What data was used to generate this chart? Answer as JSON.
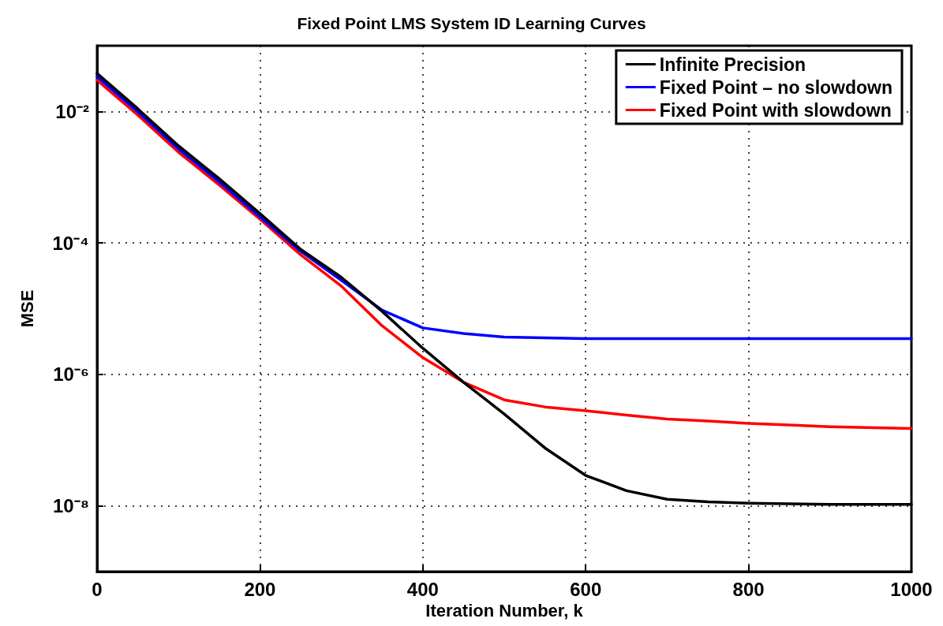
{
  "chart_data": {
    "type": "line",
    "title": "Fixed Point LMS System ID Learning Curves",
    "xlabel": "Iteration Number, k",
    "ylabel": "MSE",
    "x": [
      0,
      50,
      100,
      150,
      200,
      250,
      300,
      350,
      400,
      450,
      500,
      550,
      600,
      650,
      700,
      750,
      800,
      900,
      1000
    ],
    "series": [
      {
        "name": "Infinite Precision",
        "color": "#000000",
        "values": [
          0.038,
          0.011,
          0.003,
          0.00095,
          0.00028,
          8e-05,
          3e-05,
          9.1e-06,
          2.5e-06,
          7.6e-07,
          2.5e-07,
          7.6e-08,
          2.9e-08,
          1.7e-08,
          1.26e-08,
          1.15e-08,
          1.1e-08,
          1.05e-08,
          1.05e-08
        ]
      },
      {
        "name": "Fixed Point – no slowdown",
        "color": "#0000ff",
        "values": [
          0.034,
          0.0099,
          0.0027,
          0.00085,
          0.00025,
          7.5e-05,
          2.7e-05,
          9.5e-06,
          5.1e-06,
          4.2e-06,
          3.7e-06,
          3.6e-06,
          3.5e-06,
          3.5e-06,
          3.5e-06,
          3.5e-06,
          3.5e-06,
          3.5e-06,
          3.5e-06
        ]
      },
      {
        "name": "Fixed Point with slowdown",
        "color": "#ff0000",
        "values": [
          0.03,
          0.0088,
          0.0024,
          0.00076,
          0.00023,
          6.6e-05,
          2.2e-05,
          5.5e-06,
          1.8e-06,
          7.6e-07,
          4.1e-07,
          3.2e-07,
          2.8e-07,
          2.4e-07,
          2.1e-07,
          1.95e-07,
          1.8e-07,
          1.6e-07,
          1.5e-07
        ]
      }
    ],
    "xlim": [
      0,
      1000
    ],
    "xticks": [
      0,
      200,
      400,
      600,
      800,
      1000
    ],
    "ylim": [
      1e-09,
      0.1
    ],
    "yticks": [
      {
        "value": 0.01,
        "label": "10⁻²"
      },
      {
        "value": 0.0001,
        "label": "10⁻⁴"
      },
      {
        "value": 1e-06,
        "label": "10⁻⁶"
      },
      {
        "value": 1e-08,
        "label": "10⁻⁸"
      }
    ],
    "log": "y",
    "grid": true,
    "legend": "top right",
    "marker": "none",
    "line_style": "solid"
  }
}
